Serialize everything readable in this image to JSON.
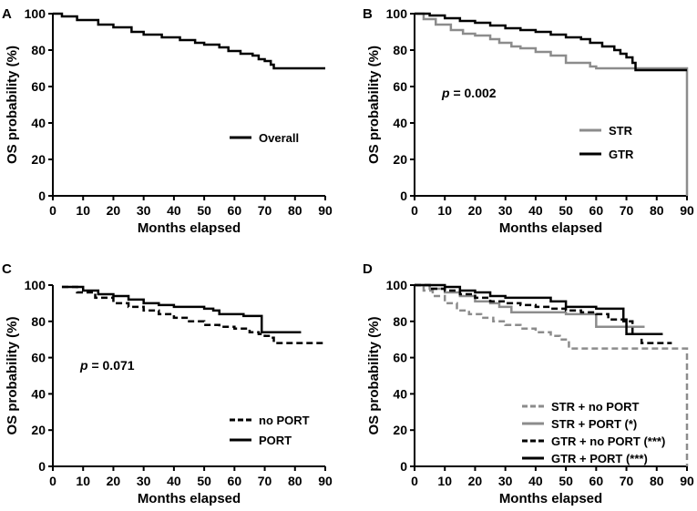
{
  "figure": {
    "description_hidden": false
  },
  "chart_data": [
    {
      "type": "line",
      "panel": "A",
      "xlabel": "Months elapsed",
      "ylabel": "OS probability (%)",
      "xlim": [
        0,
        90
      ],
      "ylim": [
        0,
        100
      ],
      "xticks": [
        0,
        10,
        20,
        30,
        40,
        50,
        60,
        70,
        80,
        90
      ],
      "yticks": [
        0,
        20,
        40,
        60,
        80,
        100
      ],
      "legend_position": "bottom-right",
      "series": [
        {
          "name": "Overall",
          "color": "#000000",
          "dash": "solid",
          "points": [
            [
              0,
              100
            ],
            [
              3,
              98.5
            ],
            [
              8,
              96.5
            ],
            [
              15,
              94
            ],
            [
              20,
              92.5
            ],
            [
              26,
              90
            ],
            [
              30,
              88.5
            ],
            [
              36,
              87
            ],
            [
              42,
              85.5
            ],
            [
              47,
              84
            ],
            [
              50,
              83
            ],
            [
              55,
              81.5
            ],
            [
              58,
              79.5
            ],
            [
              62,
              78
            ],
            [
              66,
              77
            ],
            [
              68,
              75
            ],
            [
              70,
              74
            ],
            [
              72,
              72
            ],
            [
              73,
              70
            ],
            [
              90,
              70
            ]
          ]
        }
      ]
    },
    {
      "type": "line",
      "panel": "B",
      "xlabel": "Months elapsed",
      "ylabel": "OS probability (%)",
      "xlim": [
        0,
        90
      ],
      "ylim": [
        0,
        100
      ],
      "xticks": [
        0,
        10,
        20,
        30,
        40,
        50,
        60,
        70,
        80,
        90
      ],
      "yticks": [
        0,
        20,
        40,
        60,
        80,
        100
      ],
      "legend_position": "bottom-right",
      "annotation": {
        "italic": "p",
        "text": " = 0.002"
      },
      "series": [
        {
          "name": "STR",
          "color": "#8c8c8c",
          "dash": "solid",
          "points": [
            [
              0,
              100
            ],
            [
              3,
              97
            ],
            [
              7,
              94
            ],
            [
              12,
              91
            ],
            [
              16,
              89
            ],
            [
              20,
              88
            ],
            [
              25,
              86
            ],
            [
              28,
              84
            ],
            [
              32,
              82
            ],
            [
              35,
              81
            ],
            [
              40,
              79
            ],
            [
              45,
              77
            ],
            [
              50,
              73
            ],
            [
              55,
              73
            ],
            [
              58,
              71
            ],
            [
              60,
              70
            ],
            [
              90,
              70
            ],
            [
              90,
              0
            ]
          ]
        },
        {
          "name": "GTR",
          "color": "#000000",
          "dash": "solid",
          "points": [
            [
              0,
              100
            ],
            [
              5,
              99
            ],
            [
              10,
              97.5
            ],
            [
              15,
              96
            ],
            [
              20,
              95
            ],
            [
              25,
              93.5
            ],
            [
              30,
              92
            ],
            [
              35,
              91
            ],
            [
              40,
              90
            ],
            [
              45,
              88.5
            ],
            [
              50,
              87
            ],
            [
              55,
              86
            ],
            [
              58,
              84
            ],
            [
              62,
              82
            ],
            [
              66,
              80
            ],
            [
              68,
              78
            ],
            [
              70,
              76
            ],
            [
              72,
              73
            ],
            [
              73,
              69
            ],
            [
              90,
              69
            ]
          ]
        }
      ]
    },
    {
      "type": "line",
      "panel": "C",
      "xlabel": "Months elapsed",
      "ylabel": "OS probability (%)",
      "xlim": [
        0,
        90
      ],
      "ylim": [
        0,
        100
      ],
      "xticks": [
        0,
        10,
        20,
        30,
        40,
        50,
        60,
        70,
        80,
        90
      ],
      "yticks": [
        0,
        20,
        40,
        60,
        80,
        100
      ],
      "legend_position": "bottom-right",
      "annotation": {
        "italic": "p",
        "text": " = 0.071"
      },
      "series": [
        {
          "name": "no PORT",
          "color": "#000000",
          "dash": "dashed",
          "points": [
            [
              3,
              99
            ],
            [
              8,
              96
            ],
            [
              14,
              93
            ],
            [
              20,
              90
            ],
            [
              25,
              88
            ],
            [
              30,
              86
            ],
            [
              35,
              84
            ],
            [
              40,
              82
            ],
            [
              45,
              80
            ],
            [
              50,
              78
            ],
            [
              55,
              77
            ],
            [
              60,
              76
            ],
            [
              65,
              74
            ],
            [
              68,
              73
            ],
            [
              70,
              72
            ],
            [
              72,
              71
            ],
            [
              73,
              68
            ],
            [
              90,
              68
            ]
          ]
        },
        {
          "name": "PORT",
          "color": "#000000",
          "dash": "solid",
          "points": [
            [
              3,
              99
            ],
            [
              10,
              97
            ],
            [
              15,
              95
            ],
            [
              20,
              94
            ],
            [
              25,
              92
            ],
            [
              30,
              90
            ],
            [
              35,
              89
            ],
            [
              40,
              88
            ],
            [
              45,
              88
            ],
            [
              50,
              87
            ],
            [
              53,
              86
            ],
            [
              55,
              84
            ],
            [
              60,
              84
            ],
            [
              63,
              83
            ],
            [
              68,
              83
            ],
            [
              69,
              74
            ],
            [
              82,
              74
            ]
          ]
        }
      ]
    },
    {
      "type": "line",
      "panel": "D",
      "xlabel": "Months elapsed",
      "ylabel": "OS probability (%)",
      "xlim": [
        0,
        90
      ],
      "ylim": [
        0,
        100
      ],
      "xticks": [
        0,
        10,
        20,
        30,
        40,
        50,
        60,
        70,
        80,
        90
      ],
      "yticks": [
        0,
        20,
        40,
        60,
        80,
        100
      ],
      "legend_position": "bottom-right",
      "series": [
        {
          "name": "STR + no PORT",
          "color": "#8c8c8c",
          "dash": "dashed",
          "points": [
            [
              0,
              100
            ],
            [
              3,
              97
            ],
            [
              6,
              94
            ],
            [
              10,
              90
            ],
            [
              14,
              86
            ],
            [
              18,
              84
            ],
            [
              22,
              82
            ],
            [
              26,
              80
            ],
            [
              30,
              78
            ],
            [
              35,
              76
            ],
            [
              40,
              74
            ],
            [
              45,
              72
            ],
            [
              48,
              70
            ],
            [
              51,
              65
            ],
            [
              90,
              65
            ],
            [
              90,
              0
            ]
          ]
        },
        {
          "name": "STR + PORT (*)",
          "color": "#8c8c8c",
          "dash": "solid",
          "points": [
            [
              0,
              100
            ],
            [
              5,
              98
            ],
            [
              10,
              96
            ],
            [
              15,
              94
            ],
            [
              20,
              91
            ],
            [
              25,
              90
            ],
            [
              28,
              88
            ],
            [
              32,
              85
            ],
            [
              45,
              85
            ],
            [
              50,
              84
            ],
            [
              55,
              84
            ],
            [
              58,
              84
            ],
            [
              60,
              77
            ],
            [
              70,
              77
            ],
            [
              76,
              77
            ]
          ]
        },
        {
          "name": "GTR + no PORT (***)",
          "color": "#000000",
          "dash": "dashed",
          "points": [
            [
              0,
              100
            ],
            [
              5,
              98
            ],
            [
              10,
              97
            ],
            [
              15,
              95
            ],
            [
              20,
              93
            ],
            [
              25,
              91
            ],
            [
              30,
              90
            ],
            [
              35,
              89
            ],
            [
              40,
              88
            ],
            [
              45,
              87
            ],
            [
              50,
              86
            ],
            [
              55,
              85
            ],
            [
              60,
              84
            ],
            [
              62,
              84
            ],
            [
              64,
              81
            ],
            [
              70,
              80
            ],
            [
              72,
              73
            ],
            [
              75,
              68
            ],
            [
              85,
              68
            ]
          ]
        },
        {
          "name": "GTR + PORT (***)",
          "color": "#000000",
          "dash": "solid",
          "points": [
            [
              0,
              100
            ],
            [
              10,
              99
            ],
            [
              15,
              97
            ],
            [
              20,
              96
            ],
            [
              25,
              94
            ],
            [
              30,
              93
            ],
            [
              40,
              93
            ],
            [
              45,
              91
            ],
            [
              50,
              88
            ],
            [
              55,
              88
            ],
            [
              60,
              87
            ],
            [
              68,
              87
            ],
            [
              69,
              80
            ],
            [
              70,
              73
            ],
            [
              75,
              73
            ],
            [
              78,
              73
            ],
            [
              82,
              73
            ]
          ]
        }
      ]
    }
  ]
}
